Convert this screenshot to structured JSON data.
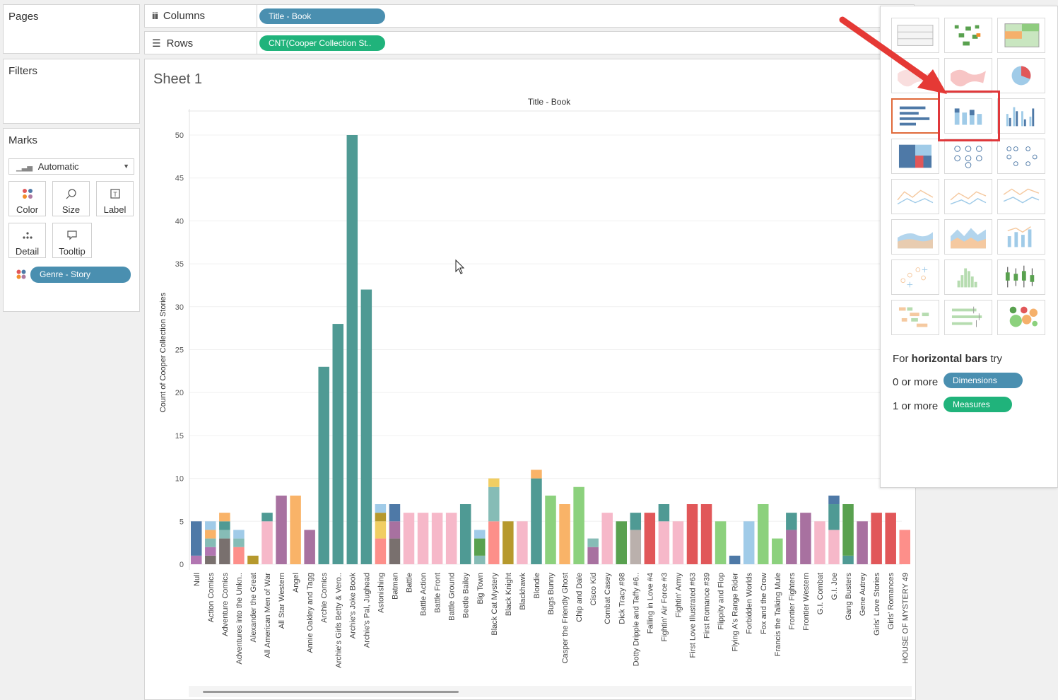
{
  "pages": {
    "title": "Pages"
  },
  "filters": {
    "title": "Filters"
  },
  "marks": {
    "title": "Marks",
    "mark_type": "Automatic",
    "buttons": {
      "color": "Color",
      "size": "Size",
      "label": "Label",
      "detail": "Detail",
      "tooltip": "Tooltip"
    },
    "color_pill": "Genre - Story"
  },
  "shelves": {
    "columns_label": "Columns",
    "columns_pill": "Title - Book",
    "rows_label": "Rows",
    "rows_pill": "CNT(Cooper Collection St.."
  },
  "sheet": {
    "title": "Sheet 1",
    "header": "Title - Book"
  },
  "show_me": {
    "hint_prefix": "For ",
    "hint_bold": "horizontal bars",
    "hint_suffix": " try",
    "req1_prefix": "0 or more",
    "req1_pill": "Dimensions",
    "req2_prefix": "1 or more",
    "req2_pill": "Measures"
  },
  "colors": {
    "teal": "#4f9a94",
    "pink": "#f6b8c9",
    "purple": "#a871a0",
    "orange": "#f9b368",
    "salmon": "#fd8f8a",
    "darkblue": "#4e79a7",
    "lightblue": "#a0cbe8",
    "mauve": "#b276b2",
    "olive": "#b6992d",
    "brown": "#79706e",
    "red": "#e15759",
    "green": "#8cd17d",
    "darkgreen": "#59a14f",
    "yellow": "#f1ce63",
    "grey": "#bab0ac",
    "tealLight": "#86bcb6",
    "accent_blue": "#4a8fb0",
    "accent_green": "#20b37b"
  },
  "chart_data": {
    "type": "bar",
    "title": "Title - Book",
    "ylabel": "Count of Cooper Collection Stories",
    "ylim": [
      0,
      50
    ],
    "yticks": [
      0,
      5,
      10,
      15,
      20,
      25,
      30,
      35,
      40,
      45,
      50
    ],
    "categories": [
      "Null",
      "Action Comics",
      "Adventure Comics",
      "Adventures into the Unkn..",
      "Alexander the Great",
      "All American Men of War",
      "All Star Western",
      "Angel",
      "Annie Oakley and Tagg",
      "Archie Comics",
      "Archie's Girls Betty & Vero..",
      "Archie's Joke Book",
      "Archie's Pal, Jughead",
      "Astonishing",
      "Batman",
      "Battle",
      "Battle Action",
      "Battle Front",
      "Battle Ground",
      "Beetle Bailey",
      "Big Town",
      "Black Cat Mystery",
      "Black Knight",
      "Blackhawk",
      "Blondie",
      "Bugs Bunny",
      "Casper the Friendly Ghost",
      "Chip and Dale",
      "Cisco Kid",
      "Combat Casey",
      "Dick Tracy #98",
      "Dotty Dripple and Taffy #6..",
      "Falling in Love #4",
      "Fightin' Air Force #3",
      "Fightin' Army",
      "First Love Illustrated #63",
      "First Romance #39",
      "Flippity and Flop",
      "Flying A's Range Rider",
      "Forbidden Worlds",
      "Fox and the Crow",
      "Francis the Talking Mule",
      "Frontier Fighters",
      "Frontier Western",
      "G.I. Combat",
      "G.I. Joe",
      "Gang Busters",
      "Gene Autrey",
      "Girls' Love Stories",
      "Girls' Romances",
      "HOUSE OF MYSTERY 49"
    ],
    "stacks": [
      [
        [
          "mauve",
          1
        ],
        [
          "darkblue",
          4
        ]
      ],
      [
        [
          "brown",
          1
        ],
        [
          "mauve",
          1
        ],
        [
          "tealLight",
          1
        ],
        [
          "orange",
          1
        ],
        [
          "lightblue",
          1
        ]
      ],
      [
        [
          "brown",
          3
        ],
        [
          "tealLight",
          1
        ],
        [
          "teal",
          1
        ],
        [
          "orange",
          1
        ]
      ],
      [
        [
          "salmon",
          2
        ],
        [
          "tealLight",
          1
        ],
        [
          "lightblue",
          1
        ]
      ],
      [
        [
          "olive",
          1
        ]
      ],
      [
        [
          "pink",
          5
        ],
        [
          "teal",
          1
        ]
      ],
      [
        [
          "purple",
          8
        ]
      ],
      [
        [
          "orange",
          8
        ]
      ],
      [
        [
          "purple",
          4
        ]
      ],
      [
        [
          "teal",
          23
        ]
      ],
      [
        [
          "teal",
          28
        ]
      ],
      [
        [
          "teal",
          50
        ]
      ],
      [
        [
          "teal",
          32
        ]
      ],
      [
        [
          "salmon",
          3
        ],
        [
          "yellow",
          2
        ],
        [
          "olive",
          1
        ],
        [
          "lightblue",
          1
        ]
      ],
      [
        [
          "brown",
          3
        ],
        [
          "purple",
          2
        ],
        [
          "darkblue",
          2
        ]
      ],
      [
        [
          "pink",
          6
        ]
      ],
      [
        [
          "pink",
          6
        ]
      ],
      [
        [
          "pink",
          6
        ]
      ],
      [
        [
          "pink",
          6
        ]
      ],
      [
        [
          "teal",
          7
        ]
      ],
      [
        [
          "tealLight",
          1
        ],
        [
          "darkgreen",
          2
        ],
        [
          "lightblue",
          1
        ]
      ],
      [
        [
          "salmon",
          5
        ],
        [
          "tealLight",
          4
        ],
        [
          "yellow",
          1
        ]
      ],
      [
        [
          "olive",
          5
        ]
      ],
      [
        [
          "pink",
          5
        ]
      ],
      [
        [
          "teal",
          10
        ],
        [
          "orange",
          1
        ]
      ],
      [
        [
          "green",
          8
        ]
      ],
      [
        [
          "orange",
          7
        ]
      ],
      [
        [
          "green",
          9
        ]
      ],
      [
        [
          "purple",
          2
        ],
        [
          "tealLight",
          1
        ]
      ],
      [
        [
          "pink",
          6
        ]
      ],
      [
        [
          "darkgreen",
          5
        ]
      ],
      [
        [
          "grey",
          4
        ],
        [
          "teal",
          2
        ]
      ],
      [
        [
          "red",
          6
        ]
      ],
      [
        [
          "pink",
          5
        ],
        [
          "teal",
          2
        ]
      ],
      [
        [
          "pink",
          5
        ]
      ],
      [
        [
          "red",
          7
        ]
      ],
      [
        [
          "red",
          7
        ]
      ],
      [
        [
          "green",
          5
        ]
      ],
      [
        [
          "darkblue",
          1
        ]
      ],
      [
        [
          "lightblue",
          5
        ]
      ],
      [
        [
          "green",
          7
        ]
      ],
      [
        [
          "green",
          3
        ]
      ],
      [
        [
          "purple",
          4
        ],
        [
          "teal",
          2
        ]
      ],
      [
        [
          "purple",
          6
        ]
      ],
      [
        [
          "pink",
          5
        ]
      ],
      [
        [
          "pink",
          4
        ],
        [
          "teal",
          3
        ],
        [
          "darkblue",
          1
        ]
      ],
      [
        [
          "teal",
          1
        ],
        [
          "darkgreen",
          6
        ]
      ],
      [
        [
          "purple",
          5
        ]
      ],
      [
        [
          "red",
          6
        ]
      ],
      [
        [
          "red",
          6
        ]
      ],
      [
        [
          "salmon",
          4
        ]
      ]
    ]
  }
}
